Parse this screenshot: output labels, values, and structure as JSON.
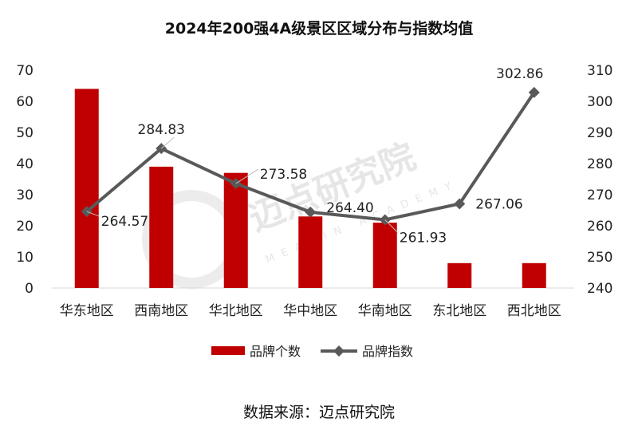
{
  "chart_data": {
    "type": "bar+line",
    "title": "2024年200强4A级景区区域分布与指数均值",
    "categories": [
      "华东地区",
      "西南地区",
      "华北地区",
      "华中地区",
      "华南地区",
      "东北地区",
      "西北地区"
    ],
    "series": [
      {
        "name": "品牌个数",
        "type": "bar",
        "axis": "left",
        "color": "#c00000",
        "values": [
          64,
          39,
          37,
          23,
          21,
          8,
          8
        ]
      },
      {
        "name": "品牌指数",
        "type": "line",
        "axis": "right",
        "color": "#595959",
        "values": [
          264.57,
          284.83,
          273.58,
          264.4,
          261.93,
          267.06,
          302.86
        ],
        "labels": [
          "264.57",
          "284.83",
          "273.58",
          "264.40",
          "261.93",
          "267.06",
          "302.86"
        ]
      }
    ],
    "y_left": {
      "min": 0,
      "max": 70,
      "step": 10,
      "ticks": [
        "0",
        "10",
        "20",
        "30",
        "40",
        "50",
        "60",
        "70"
      ]
    },
    "y_right": {
      "min": 240,
      "max": 310,
      "step": 10,
      "ticks": [
        "240",
        "250",
        "260",
        "270",
        "280",
        "290",
        "300",
        "310"
      ]
    },
    "legend": {
      "position": "bottom",
      "items": [
        "品牌个数",
        "品牌指数"
      ]
    },
    "grid": false
  },
  "watermark": {
    "text": "迈点研究院",
    "subtext": "MEADIN ACADEMY"
  },
  "source": "数据来源：迈点研究院"
}
